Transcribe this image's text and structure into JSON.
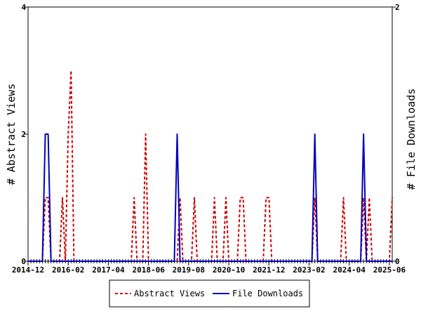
{
  "chart_data": {
    "type": "line",
    "x_tick_labels": [
      "2014-12",
      "2016-02",
      "2017-04",
      "2018-06",
      "2019-08",
      "2020-10",
      "2021-12",
      "2023-02",
      "2024-04",
      "2025-06"
    ],
    "xlim": [
      "2014-12",
      "2025-07"
    ],
    "y_left": {
      "label": "# Abstract Views",
      "ylim": [
        0,
        4
      ],
      "ticks": [
        "0",
        "2",
        "4"
      ]
    },
    "y_right": {
      "label": "# File Downloads",
      "ylim": [
        0,
        2
      ],
      "ticks": [
        "0",
        "2"
      ]
    },
    "grid": false,
    "legend_position": "bottom",
    "series": [
      {
        "name": "Abstract Views",
        "axis": "left",
        "style": "dashed",
        "color": "#cc0000",
        "points": [
          [
            "2014-12",
            0
          ],
          [
            "2015-05",
            0
          ],
          [
            "2015-06",
            1
          ],
          [
            "2015-07",
            1
          ],
          [
            "2015-08",
            0
          ],
          [
            "2015-11",
            0
          ],
          [
            "2015-12",
            1
          ],
          [
            "2016-01",
            0
          ],
          [
            "2016-02",
            2
          ],
          [
            "2016-03",
            3
          ],
          [
            "2016-04",
            0
          ],
          [
            "2017-12",
            0
          ],
          [
            "2018-01",
            1
          ],
          [
            "2018-02",
            0
          ],
          [
            "2018-04",
            0
          ],
          [
            "2018-05",
            2
          ],
          [
            "2018-06",
            0
          ],
          [
            "2019-04",
            0
          ],
          [
            "2019-05",
            1
          ],
          [
            "2019-06",
            0
          ],
          [
            "2019-09",
            0
          ],
          [
            "2019-10",
            1
          ],
          [
            "2019-11",
            0
          ],
          [
            "2020-04",
            0
          ],
          [
            "2020-05",
            1
          ],
          [
            "2020-06",
            0
          ],
          [
            "2020-08",
            0
          ],
          [
            "2020-09",
            1
          ],
          [
            "2020-10",
            0
          ],
          [
            "2021-01",
            0
          ],
          [
            "2021-02",
            1
          ],
          [
            "2021-03",
            1
          ],
          [
            "2021-04",
            0
          ],
          [
            "2021-10",
            0
          ],
          [
            "2021-11",
            1
          ],
          [
            "2021-12",
            1
          ],
          [
            "2022-01",
            0
          ],
          [
            "2023-03",
            0
          ],
          [
            "2023-04",
            1
          ],
          [
            "2023-05",
            0
          ],
          [
            "2024-01",
            0
          ],
          [
            "2024-02",
            1
          ],
          [
            "2024-03",
            0
          ],
          [
            "2024-08",
            0
          ],
          [
            "2024-09",
            1
          ],
          [
            "2024-10",
            0
          ],
          [
            "2024-11",
            1
          ],
          [
            "2024-12",
            0
          ],
          [
            "2025-06",
            0
          ],
          [
            "2025-07",
            1
          ]
        ]
      },
      {
        "name": "File Downloads",
        "axis": "right",
        "style": "solid",
        "color": "#0000bb",
        "points": [
          [
            "2014-12",
            0
          ],
          [
            "2015-05",
            0
          ],
          [
            "2015-06",
            1
          ],
          [
            "2015-07",
            1
          ],
          [
            "2015-08",
            0
          ],
          [
            "2019-03",
            0
          ],
          [
            "2019-04",
            1
          ],
          [
            "2019-05",
            0
          ],
          [
            "2023-03",
            0
          ],
          [
            "2023-04",
            1
          ],
          [
            "2023-05",
            0
          ],
          [
            "2024-08",
            0
          ],
          [
            "2024-09",
            1
          ],
          [
            "2024-10",
            0
          ],
          [
            "2025-07",
            0
          ]
        ]
      }
    ]
  }
}
